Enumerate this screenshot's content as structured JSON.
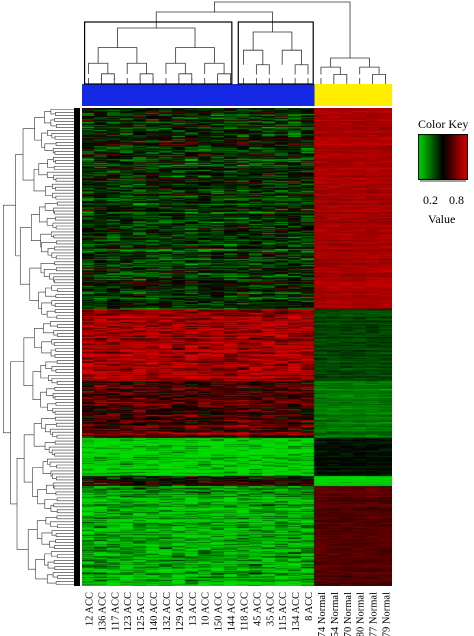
{
  "chart_data": {
    "type": "heatmap",
    "columns": [
      "12 ACC",
      "136 ACC",
      "117 ACC",
      "123 ACC",
      "125 ACC",
      "140 ACC",
      "132 ACC",
      "129 ACC",
      "13 ACC",
      "10 ACC",
      "150 ACC",
      "144 ACC",
      "118 ACC",
      "45 ACC",
      "35 ACC",
      "115 ACC",
      "134 ACC",
      "8 ACC",
      "74 Normal",
      "54 Normal",
      "70 Normal",
      "80 Normal",
      "77 Normal",
      "79 Normal"
    ],
    "column_groups": [
      {
        "name": "ACC",
        "count": 18,
        "color": "#1428e6"
      },
      {
        "name": "Normal",
        "count": 6,
        "color": "#ffee00"
      }
    ],
    "row_blocks": [
      {
        "rows": 0.42,
        "acc_value": 0.42,
        "normal_value": 0.8
      },
      {
        "rows": 0.15,
        "acc_value": 0.8,
        "normal_value": 0.38
      },
      {
        "rows": 0.12,
        "acc_value": 0.62,
        "normal_value": 0.28
      },
      {
        "rows": 0.08,
        "acc_value": 0.12,
        "normal_value": 0.48
      },
      {
        "rows": 0.02,
        "acc_value": 0.5,
        "normal_value": 0.1
      },
      {
        "rows": 0.21,
        "acc_value": 0.2,
        "normal_value": 0.65
      }
    ],
    "color_scale": {
      "low": "#00dd00",
      "mid": "#000000",
      "high": "#e00000",
      "min": 0.1,
      "max": 0.9
    },
    "color_key": {
      "title": "Color Key",
      "ticks": [
        "0.2",
        "0.8"
      ],
      "tick_values": [
        0.2,
        0.8
      ],
      "label": "Value"
    }
  }
}
